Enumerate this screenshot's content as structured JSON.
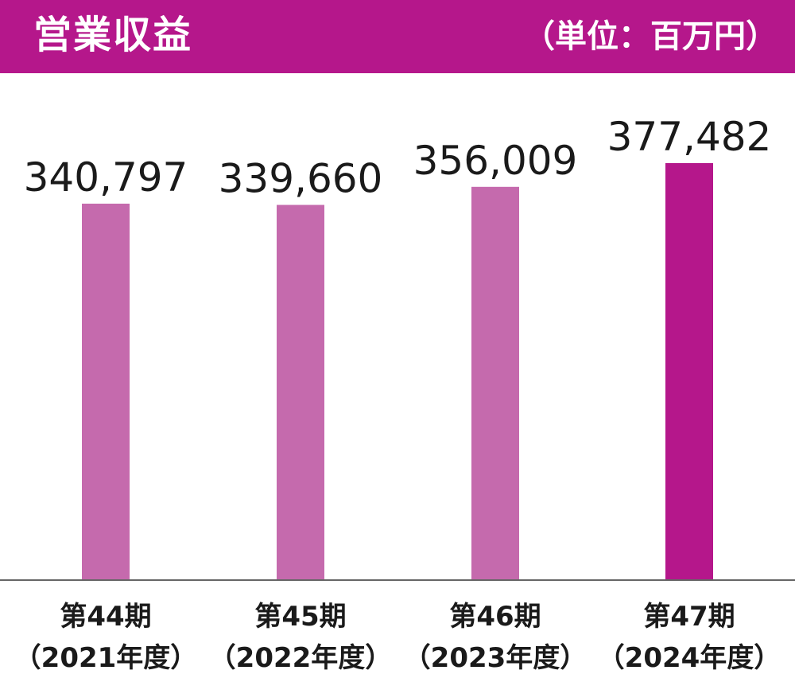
{
  "header": {
    "title": "営業収益",
    "unit": "（単位：百万円）"
  },
  "colors": {
    "header_bg": "#b5178b",
    "bar_past": "#c56aad",
    "bar_current": "#b5178b",
    "axis": "#666666"
  },
  "chart_data": {
    "type": "bar",
    "categories": [
      [
        "第44期",
        "（2021年度）"
      ],
      [
        "第45期",
        "（2022年度）"
      ],
      [
        "第46期",
        "（2023年度）"
      ],
      [
        "第47期",
        "（2024年度）"
      ]
    ],
    "values": [
      340797,
      339660,
      356009,
      377482
    ],
    "value_labels": [
      "340,797",
      "339,660",
      "356,009",
      "377,482"
    ],
    "highlight_index": 3,
    "title": "営業収益",
    "unit": "（単位：百万円）",
    "ylim": [
      0,
      377482
    ],
    "grid": false
  }
}
